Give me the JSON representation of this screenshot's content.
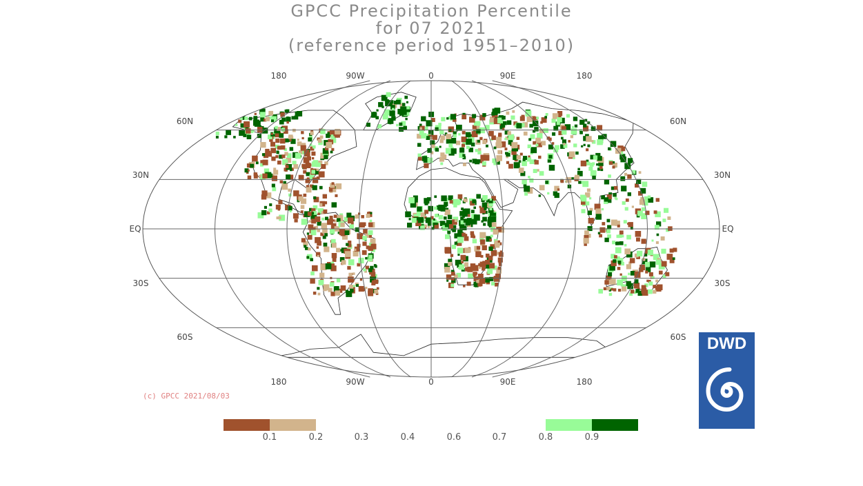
{
  "title": {
    "line1": "GPCC Precipitation Percentile",
    "line2": "for 07 2021",
    "line3": "(reference period 1951–2010)"
  },
  "map": {
    "projection": "Robinson",
    "lon_labels_top": [
      "180",
      "90W",
      "0",
      "90E",
      "180"
    ],
    "lon_labels_bottom": [
      "180",
      "90W",
      "0",
      "90E",
      "180"
    ],
    "lat_labels": [
      "60N",
      "30N",
      "EQ",
      "30S",
      "60S"
    ]
  },
  "copyright": "(c) GPCC 2021/08/03",
  "colorbar": {
    "ticks": [
      "0.1",
      "0.2",
      "0.3",
      "0.4",
      "0.6",
      "0.7",
      "0.8",
      "0.9"
    ],
    "colors": {
      "very_dry": "#a0522d",
      "dry": "#d2b48c",
      "wet": "#98fb98",
      "very_wet": "#006400"
    }
  },
  "logo": {
    "text": "DWD",
    "color": "#2b5ca6"
  }
}
